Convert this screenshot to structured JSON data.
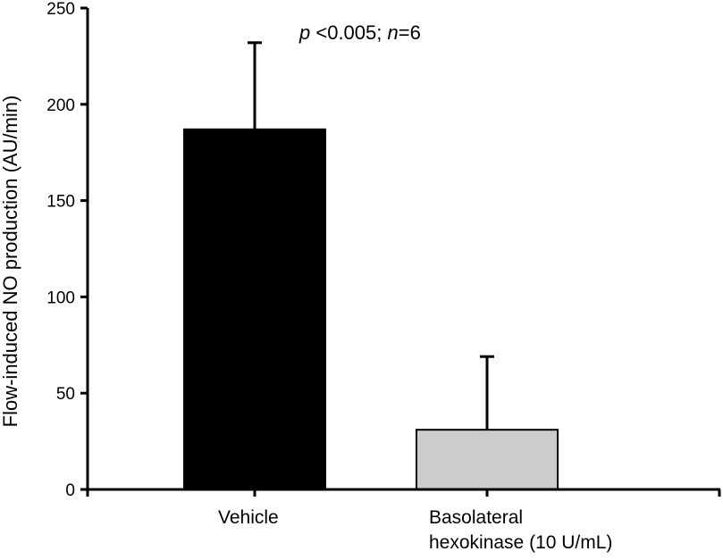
{
  "chart_data": {
    "type": "bar",
    "categories": [
      [
        "Vehicle"
      ],
      [
        "Basolateral",
        "hexokinase (10 U/mL)"
      ]
    ],
    "values": [
      187,
      31
    ],
    "errors": [
      45,
      38
    ],
    "colors": [
      "#000000",
      "#cccccc"
    ],
    "ylabel": "Flow-induced NO production (AU/min)",
    "xlabel": "",
    "ylim": [
      0,
      250
    ],
    "yticks": [
      0,
      50,
      100,
      150,
      200,
      250
    ],
    "ytick_labels": [
      "0",
      "50",
      "100",
      "150",
      "200",
      "250"
    ],
    "annotation": {
      "p_symbol": "p",
      "p_text": " <0.005; ",
      "n_symbol": "n",
      "n_text": "=6"
    },
    "grid": false,
    "legend": "none"
  }
}
